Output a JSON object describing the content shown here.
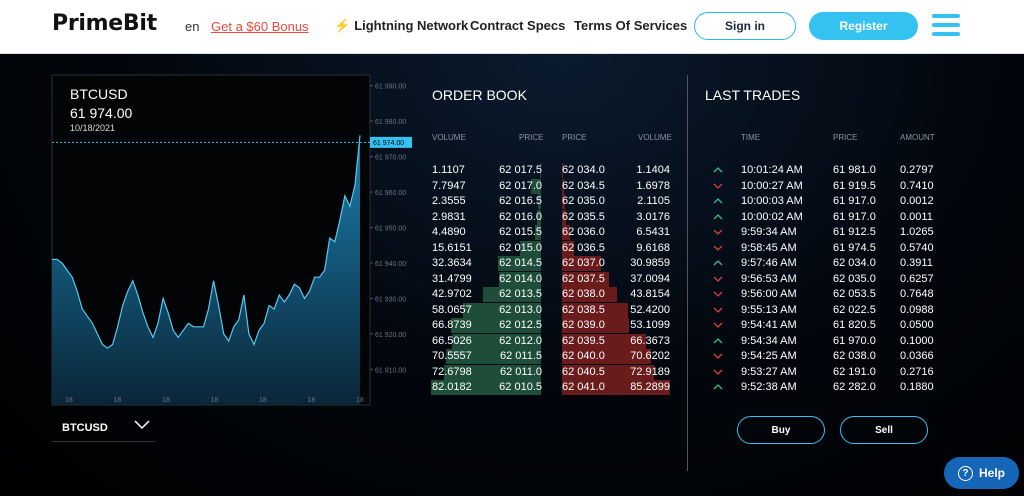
{
  "header": {
    "logo": "PrimeBit",
    "lang": "en",
    "bonus": "Get a $60 Bonus",
    "nav": {
      "lightning_icon": "lightning-bolt-icon",
      "lightning": "Lightning Network",
      "contract": "Contract Specs",
      "terms": "Terms Of Services"
    },
    "signin": "Sign in",
    "register": "Register",
    "menu_icon": "hamburger-menu-icon",
    "accent": "#34c3f1"
  },
  "chart": {
    "symbol": "BTCUSD",
    "price": "61 974.00",
    "date": "10/18/2021",
    "current_label": "61 974.00",
    "y_ticks": [
      "61 990.00",
      "61 980.00",
      "61 970.00",
      "61 960.00",
      "61 950.00",
      "61 940.00",
      "61 930.00",
      "61 920.00",
      "61 910.00"
    ],
    "x_ticks": [
      "18",
      "18",
      "18",
      "18",
      "18",
      "18",
      "18"
    ],
    "selector_label": "BTCUSD",
    "selector_icon": "chevron-down-icon",
    "chart_data": {
      "type": "area",
      "ylim": [
        61907,
        61993
      ],
      "current": 61974,
      "values": [
        61941,
        61941,
        61940,
        61938,
        61936,
        61932,
        61927,
        61925,
        61923,
        61920,
        61917,
        61916,
        61917,
        61922,
        61928,
        61932,
        61935,
        61931,
        61926,
        61922,
        61919,
        61923,
        61930,
        61926,
        61921,
        61919,
        61921,
        61923,
        61922,
        61922,
        61922,
        61927,
        61935,
        61928,
        61920,
        61918,
        61922,
        61924,
        61931,
        61920,
        61917,
        61921,
        61923,
        61928,
        61927,
        61931,
        61929,
        61931,
        61934,
        61933,
        61930,
        61932,
        61936,
        61936,
        61938,
        61947,
        61946,
        61952,
        61959,
        61956,
        61962,
        61976
      ]
    }
  },
  "orderbook": {
    "title": "ORDER BOOK",
    "headers": [
      "VOLUME",
      "PRICE",
      "PRICE",
      "VOLUME"
    ],
    "bids": [
      {
        "vol": "1.1107",
        "price": "62 017.5"
      },
      {
        "vol": "7.7947",
        "price": "62 017.0"
      },
      {
        "vol": "2.3555",
        "price": "62 016.5"
      },
      {
        "vol": "2.9831",
        "price": "62 016.0"
      },
      {
        "vol": "4.4890",
        "price": "62 015.5"
      },
      {
        "vol": "15.6151",
        "price": "62 015.0"
      },
      {
        "vol": "32.3634",
        "price": "62 014.5"
      },
      {
        "vol": "31.4799",
        "price": "62 014.0"
      },
      {
        "vol": "42.9702",
        "price": "62 013.5"
      },
      {
        "vol": "58.0657",
        "price": "62 013.0"
      },
      {
        "vol": "66.8739",
        "price": "62 012.5"
      },
      {
        "vol": "66.5026",
        "price": "62 012.0"
      },
      {
        "vol": "70.5557",
        "price": "62 011.5"
      },
      {
        "vol": "72.6798",
        "price": "62 011.0"
      },
      {
        "vol": "82.0182",
        "price": "62 010.5"
      }
    ],
    "asks": [
      {
        "price": "62 034.0",
        "vol": "1.1404"
      },
      {
        "price": "62 034.5",
        "vol": "1.6978"
      },
      {
        "price": "62 035.0",
        "vol": "2.1105"
      },
      {
        "price": "62 035.5",
        "vol": "3.0176"
      },
      {
        "price": "62 036.0",
        "vol": "6.5431"
      },
      {
        "price": "62 036.5",
        "vol": "9.6168"
      },
      {
        "price": "62 037.0",
        "vol": "30.9859"
      },
      {
        "price": "62 037.5",
        "vol": "37.0094"
      },
      {
        "price": "62 038.0",
        "vol": "43.8154"
      },
      {
        "price": "62 038.5",
        "vol": "52.4200"
      },
      {
        "price": "62 039.0",
        "vol": "53.1099"
      },
      {
        "price": "62 039.5",
        "vol": "66.3673"
      },
      {
        "price": "62 040.0",
        "vol": "70.6202"
      },
      {
        "price": "62 040.5",
        "vol": "72.9189"
      },
      {
        "price": "62 041.0",
        "vol": "85.2899"
      }
    ],
    "bid_color": "#1e4d3a",
    "ask_color": "#6a1b1b"
  },
  "last_trades": {
    "title": "LAST TRADES",
    "headers": [
      "TIME",
      "PRICE",
      "AMOUNT"
    ],
    "rows": [
      {
        "dir": "up",
        "time": "10:01:24 AM",
        "price": "61 981.0",
        "amount": "0.2797"
      },
      {
        "dir": "down",
        "time": "10:00:27 AM",
        "price": "61 919.5",
        "amount": "0.7410"
      },
      {
        "dir": "up",
        "time": "10:00:03 AM",
        "price": "61 917.0",
        "amount": "0.0012"
      },
      {
        "dir": "up",
        "time": "10:00:02 AM",
        "price": "61 917.0",
        "amount": "0.0011"
      },
      {
        "dir": "down",
        "time": "9:59:34 AM",
        "price": "61 912.5",
        "amount": "1.0265"
      },
      {
        "dir": "down",
        "time": "9:58:45 AM",
        "price": "61 974.5",
        "amount": "0.5740"
      },
      {
        "dir": "up",
        "time": "9:57:46 AM",
        "price": "62 034.0",
        "amount": "0.3911"
      },
      {
        "dir": "down",
        "time": "9:56:53 AM",
        "price": "62 035.0",
        "amount": "0.6257"
      },
      {
        "dir": "down",
        "time": "9:56:00 AM",
        "price": "62 053.5",
        "amount": "0.7648"
      },
      {
        "dir": "down",
        "time": "9:55:13 AM",
        "price": "62 022.5",
        "amount": "0.0988"
      },
      {
        "dir": "down",
        "time": "9:54:41 AM",
        "price": "61 820.5",
        "amount": "0.0500"
      },
      {
        "dir": "up",
        "time": "9:54:34 AM",
        "price": "61 970.0",
        "amount": "0.1000"
      },
      {
        "dir": "down",
        "time": "9:54:25 AM",
        "price": "62 038.0",
        "amount": "0.0366"
      },
      {
        "dir": "down",
        "time": "9:53:27 AM",
        "price": "62 191.0",
        "amount": "0.2716"
      },
      {
        "dir": "up",
        "time": "9:52:38 AM",
        "price": "62 282.0",
        "amount": "0.1880"
      }
    ],
    "up_color": "#2fbf8a",
    "down_color": "#d9413a",
    "buy": "Buy",
    "sell": "Sell"
  },
  "help": {
    "label": "Help",
    "icon": "question-circle-icon"
  }
}
